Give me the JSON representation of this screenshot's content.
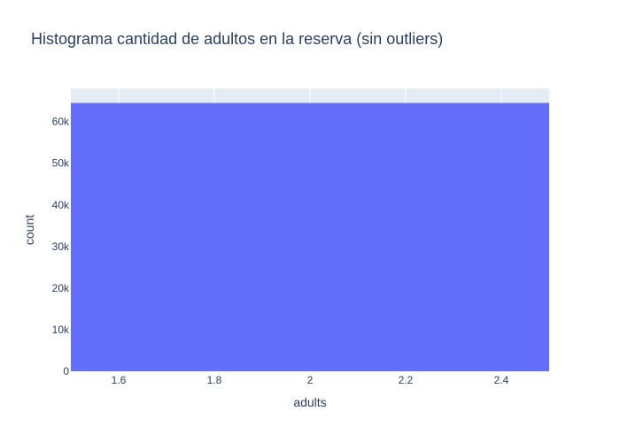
{
  "chart_data": {
    "type": "bar",
    "title": "Histograma cantidad de adultos en la reserva (sin outliers)",
    "xlabel": "adults",
    "ylabel": "count",
    "bins": [
      {
        "x0": 1.5,
        "x1": 2.5,
        "count": 64500
      }
    ],
    "xlim": [
      1.5,
      2.5
    ],
    "ylim": [
      0,
      68000
    ],
    "x_ticks": [
      1.6,
      1.8,
      2,
      2.2,
      2.4
    ],
    "x_tick_labels": [
      "1.6",
      "1.8",
      "2",
      "2.2",
      "2.4"
    ],
    "y_ticks": [
      0,
      10000,
      20000,
      30000,
      40000,
      50000,
      60000
    ],
    "y_tick_labels": [
      "0",
      "10k",
      "20k",
      "30k",
      "40k",
      "50k",
      "60k"
    ],
    "grid": true,
    "legend": "none",
    "colors": {
      "bar": "#636efa",
      "plot_background": "#e5ecf6",
      "text": "#2a3f5f"
    }
  }
}
